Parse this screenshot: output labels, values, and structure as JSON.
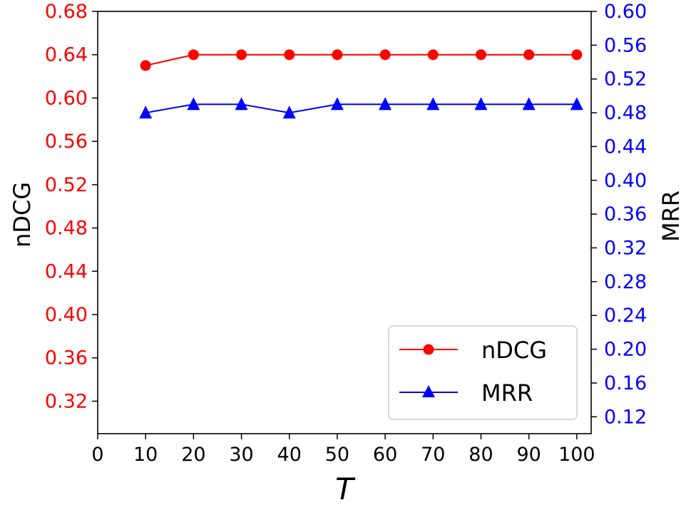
{
  "chart_data": {
    "type": "line",
    "x": [
      10,
      20,
      30,
      40,
      50,
      60,
      70,
      80,
      90,
      100
    ],
    "xlabel": "T",
    "xlim": [
      0,
      103
    ],
    "xticks": [
      "0",
      "10",
      "20",
      "30",
      "40",
      "50",
      "60",
      "70",
      "80",
      "90",
      "100"
    ],
    "ylabel_left": "nDCG",
    "ylim_left": [
      0.29,
      0.68
    ],
    "yticks_left": [
      "0.32",
      "0.36",
      "0.40",
      "0.44",
      "0.48",
      "0.52",
      "0.56",
      "0.60",
      "0.64",
      "0.68"
    ],
    "ylabel_right": "MRR",
    "ylim_right": [
      0.1,
      0.6
    ],
    "yticks_right": [
      "0.12",
      "0.16",
      "0.20",
      "0.24",
      "0.28",
      "0.32",
      "0.36",
      "0.40",
      "0.44",
      "0.48",
      "0.52",
      "0.56",
      "0.60"
    ],
    "series": [
      {
        "name": "nDCG",
        "axis": "left",
        "color": "#ff0000",
        "marker": "circle",
        "values": [
          0.63,
          0.64,
          0.64,
          0.64,
          0.64,
          0.64,
          0.64,
          0.64,
          0.64,
          0.64
        ]
      },
      {
        "name": "MRR",
        "axis": "right",
        "color": "#0000ff",
        "marker": "triangle",
        "values": [
          0.48,
          0.49,
          0.49,
          0.48,
          0.49,
          0.49,
          0.49,
          0.49,
          0.49,
          0.49
        ]
      }
    ],
    "legend": "lower-right",
    "grid": false,
    "left_tick_color": "#ff0000",
    "right_tick_color": "#0000ff"
  }
}
